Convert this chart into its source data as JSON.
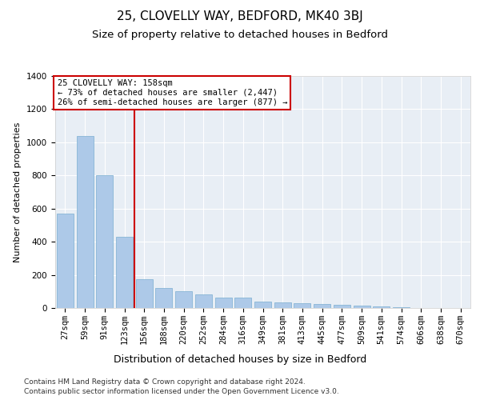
{
  "title_line1": "25, CLOVELLY WAY, BEDFORD, MK40 3BJ",
  "title_line2": "Size of property relative to detached houses in Bedford",
  "xlabel": "Distribution of detached houses by size in Bedford",
  "ylabel": "Number of detached properties",
  "categories": [
    "27sqm",
    "59sqm",
    "91sqm",
    "123sqm",
    "156sqm",
    "188sqm",
    "220sqm",
    "252sqm",
    "284sqm",
    "316sqm",
    "349sqm",
    "381sqm",
    "413sqm",
    "445sqm",
    "477sqm",
    "509sqm",
    "541sqm",
    "574sqm",
    "606sqm",
    "638sqm",
    "670sqm"
  ],
  "values": [
    570,
    1040,
    800,
    430,
    175,
    120,
    100,
    80,
    65,
    65,
    40,
    35,
    30,
    25,
    20,
    15,
    10,
    5,
    0,
    0,
    0
  ],
  "bar_color": "#adc9e8",
  "bar_edge_color": "#7aaed0",
  "vline_color": "#cc0000",
  "vline_pos": 4.5,
  "ylim": [
    0,
    1400
  ],
  "yticks": [
    0,
    200,
    400,
    600,
    800,
    1000,
    1200,
    1400
  ],
  "annotation_text": "25 CLOVELLY WAY: 158sqm\n← 73% of detached houses are smaller (2,447)\n26% of semi-detached houses are larger (877) →",
  "annotation_box_color": "#cc0000",
  "bg_color": "#e8eef5",
  "footer_line1": "Contains HM Land Registry data © Crown copyright and database right 2024.",
  "footer_line2": "Contains public sector information licensed under the Open Government Licence v3.0.",
  "title_fontsize": 11,
  "subtitle_fontsize": 9.5,
  "xlabel_fontsize": 9,
  "ylabel_fontsize": 8,
  "tick_fontsize": 7.5,
  "annot_fontsize": 7.5,
  "footer_fontsize": 6.5
}
